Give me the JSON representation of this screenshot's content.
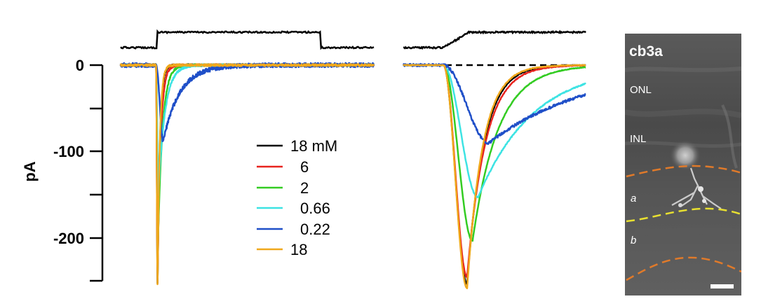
{
  "chart_data": {
    "type": "line",
    "title": "",
    "ylabel": "pA",
    "yticks": [
      0,
      -100,
      -200
    ],
    "ylim": [
      -255,
      5
    ],
    "stimulus_label": "",
    "legend": {
      "placement": "center",
      "entries": [
        {
          "label": "18 mM",
          "color": "#000000"
        },
        {
          "label": "6",
          "color": "#e8231d"
        },
        {
          "label": "2",
          "color": "#33cc22"
        },
        {
          "label": "0.66",
          "color": "#3de3e3"
        },
        {
          "label": "0.22",
          "color": "#1f4fc8"
        },
        {
          "label": "18",
          "color": "#f0a81c"
        }
      ]
    },
    "panels": [
      {
        "name": "full-trace",
        "time_range": [
          0,
          100
        ],
        "stim_on": 14.5,
        "stim_off": 79,
        "series": [
          {
            "name": "18 mM",
            "color": "#000000",
            "peak": -255,
            "onset": 14,
            "time_to_peak": 0.6,
            "decay_tau": 0.9,
            "noise": 1.2
          },
          {
            "name": "6",
            "color": "#e8231d",
            "peak": -240,
            "onset": 14,
            "time_to_peak": 0.6,
            "decay_tau": 1.2,
            "noise": 1.2
          },
          {
            "name": "2",
            "color": "#33cc22",
            "peak": -210,
            "onset": 14,
            "time_to_peak": 0.7,
            "decay_tau": 1.8,
            "noise": 1.2
          },
          {
            "name": "0.66",
            "color": "#3de3e3",
            "peak": -150,
            "onset": 14,
            "time_to_peak": 0.9,
            "decay_tau": 2.6,
            "noise": 1.2
          },
          {
            "name": "0.22",
            "color": "#1f4fc8",
            "peak": -88,
            "onset": 14,
            "time_to_peak": 2.8,
            "decay_tau": 6.5,
            "noise": 2.5
          },
          {
            "name": "18",
            "color": "#f0a81c",
            "peak": -258,
            "onset": 14,
            "time_to_peak": 0.6,
            "decay_tau": 0.85,
            "noise": 1.2
          }
        ]
      },
      {
        "name": "expanded-trace",
        "time_range": [
          0,
          100
        ],
        "stim_on": 22,
        "stim_off": 101,
        "series": [
          {
            "name": "18 mM",
            "color": "#000000",
            "peak": -253,
            "onset": 22,
            "time_to_peak": 13,
            "decay_tau": 9,
            "noise": 0.4
          },
          {
            "name": "6",
            "color": "#e8231d",
            "peak": -245,
            "onset": 22,
            "time_to_peak": 13,
            "decay_tau": 10,
            "noise": 0.4
          },
          {
            "name": "2",
            "color": "#33cc22",
            "peak": -203,
            "onset": 22,
            "time_to_peak": 16,
            "decay_tau": 14,
            "noise": 0.4
          },
          {
            "name": "0.66",
            "color": "#3de3e3",
            "peak": -153,
            "onset": 22,
            "time_to_peak": 19,
            "decay_tau": 30,
            "noise": 0.6
          },
          {
            "name": "0.22",
            "color": "#1f4fc8",
            "peak": -90,
            "onset": 22,
            "time_to_peak": 25,
            "decay_tau": 55,
            "noise": 1.5
          },
          {
            "name": "18",
            "color": "#f0a81c",
            "peak": -258,
            "onset": 22,
            "time_to_peak": 13,
            "decay_tau": 8.5,
            "noise": 0.4
          }
        ]
      }
    ]
  },
  "image_panel": {
    "title": "cb3a",
    "layers": [
      "ONL",
      "INL"
    ],
    "sublayers": [
      "a",
      "b"
    ],
    "boundary_colors": {
      "outer": "#e07a2a",
      "inner": "#e8e030"
    }
  }
}
